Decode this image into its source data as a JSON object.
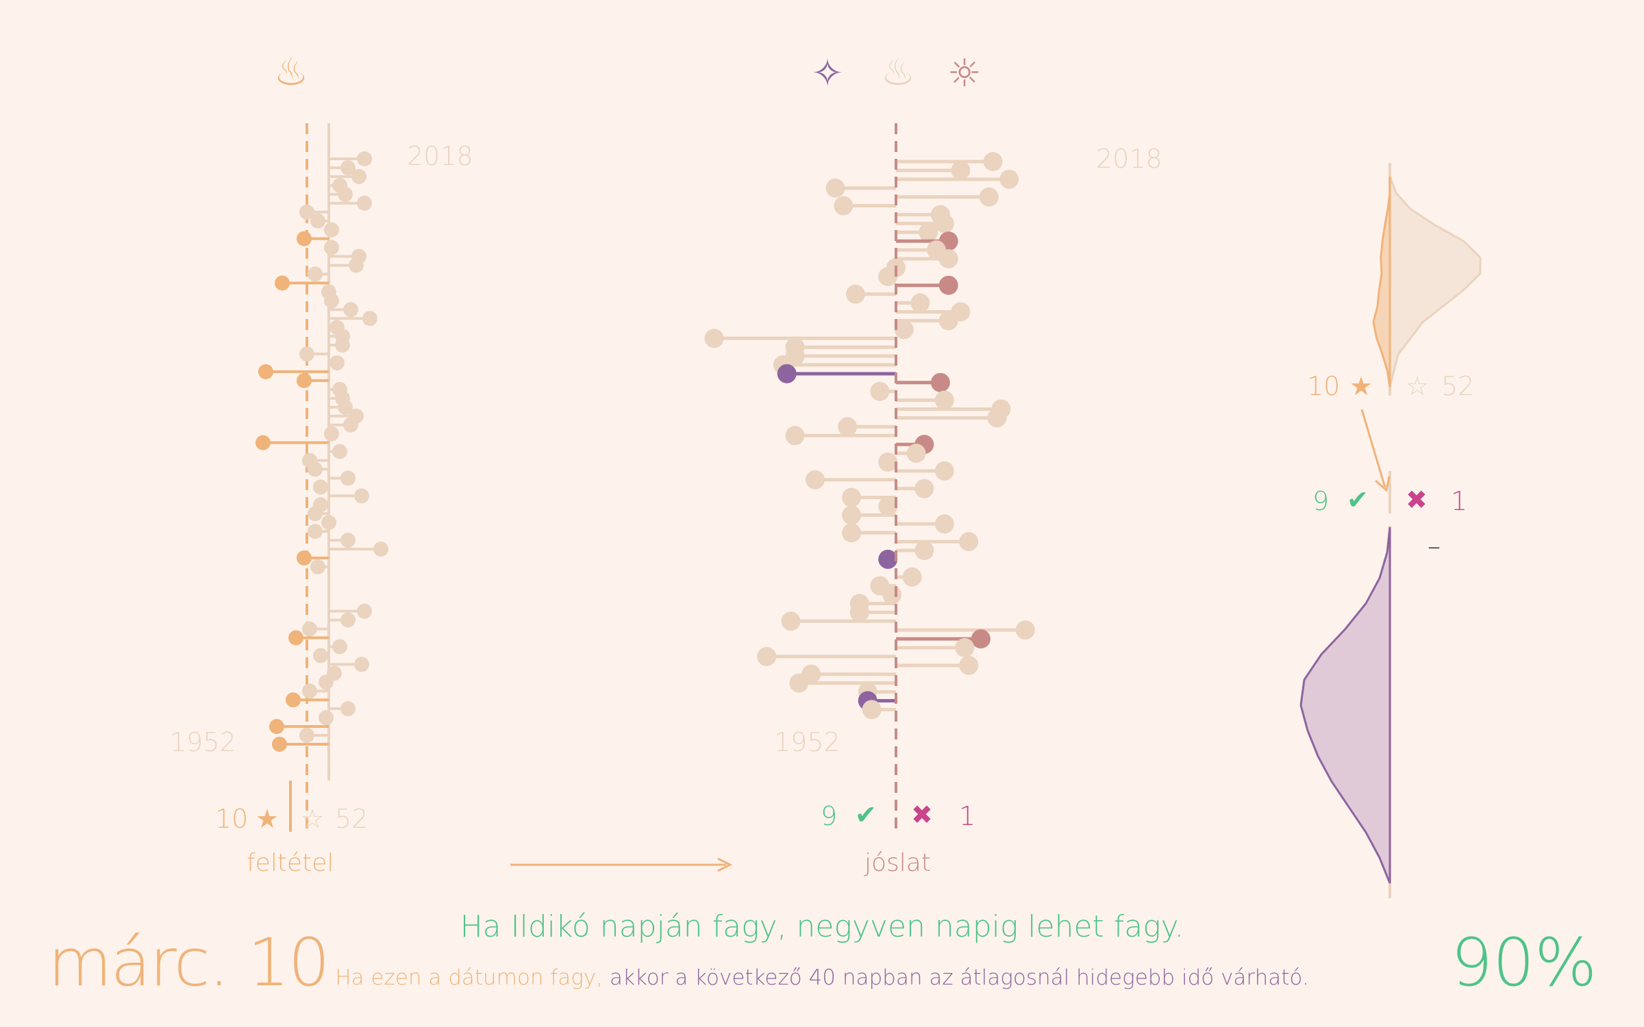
{
  "colors": {
    "background": "#fdf3ec",
    "condition": "#f0b37a",
    "neutral": "#ead3bf",
    "hit": "#8e64a0",
    "threshold": "#c88a86",
    "forecast_miss": "#c88a86",
    "correct": "#4fc389",
    "wrong": "#c9448c"
  },
  "icons": {
    "left": "hot-spring-icon",
    "middle": [
      "sparkles-icon",
      "hot-spring-icon",
      "sun-icon"
    ]
  },
  "chart_data": {
    "type": "lollipop",
    "years": {
      "start": 1952,
      "end": 2018
    },
    "condition_panel": {
      "label": "feltétel",
      "year_top": "2018",
      "year_bottom": "1952",
      "threshold_offset": -0.8,
      "frost_count": "10",
      "nofrost_count": "52",
      "star_filled": "★",
      "star_empty": "☆",
      "values": [
        1.3,
        0.7,
        1.1,
        0.4,
        0.6,
        1.3,
        -0.8,
        -0.4,
        0.1,
        -0.9,
        0.1,
        1.1,
        1.0,
        -0.5,
        -1.7,
        0.0,
        0.1,
        0.8,
        1.5,
        0.3,
        0.5,
        0.5,
        -0.8,
        0.3,
        -2.3,
        -0.9,
        0.4,
        0.5,
        0.6,
        1.0,
        0.8,
        0.1,
        -2.4,
        0.4,
        -0.7,
        -0.5,
        0.7,
        -0.3,
        1.2,
        -0.3,
        -0.5,
        0.0,
        -0.5,
        0.7,
        1.9,
        -0.9,
        -0.4,
        null,
        null,
        null,
        null,
        1.3,
        0.7,
        -0.7,
        -1.2,
        0.4,
        -0.3,
        1.2,
        0.2,
        -0.1,
        -0.7,
        -1.3,
        0.7,
        -0.1,
        -1.9,
        -0.8,
        -1.8
      ]
    },
    "forecast_panel": {
      "label": "jóslat",
      "year_top": "2018",
      "year_bottom": "1952",
      "correct_count": "9",
      "wrong_count": "1",
      "check": "✔",
      "cross": "✖",
      "values": [
        2.4,
        1.6,
        2.8,
        -1.5,
        2.3,
        -1.3,
        1.1,
        1.2,
        0.8,
        1.3,
        1.0,
        1.3,
        0.0,
        -0.2,
        1.3,
        -1.0,
        0.6,
        1.6,
        1.3,
        0.2,
        -4.5,
        -2.5,
        -2.5,
        -2.8,
        -2.7,
        1.1,
        -0.4,
        1.2,
        2.6,
        2.5,
        -1.2,
        -2.5,
        0.7,
        0.5,
        -0.2,
        1.2,
        -2.0,
        0.7,
        -1.1,
        -0.2,
        -1.1,
        1.2,
        -1.1,
        1.8,
        0.7,
        -0.2,
        null,
        0.4,
        -0.4,
        -0.1,
        -0.9,
        -0.9,
        -2.6,
        3.2,
        2.1,
        1.7,
        -3.2,
        1.8,
        -2.1,
        -2.4,
        -0.7,
        -0.7,
        -0.6,
        null,
        null,
        null,
        null
      ]
    },
    "distribution_panel": {
      "frost_count": "10",
      "nofrost_count": "52",
      "correct_count": "9",
      "wrong_count": "1",
      "star_filled": "★",
      "star_empty": "☆",
      "check": "✔",
      "cross": "✖",
      "dash": "–",
      "top_density_nofrost": [
        0.0,
        0.15,
        0.5,
        1.1,
        1.8,
        2.2,
        2.2,
        1.8,
        1.3,
        0.8,
        0.5,
        0.2,
        0.1,
        0.0
      ],
      "top_density_frost": [
        0.0,
        0.0,
        0.05,
        0.12,
        0.18,
        0.22,
        0.2,
        0.26,
        0.3,
        0.4,
        0.32,
        0.18,
        0.06,
        0.0
      ],
      "bottom_density": [
        0.0,
        0.08,
        0.3,
        0.7,
        1.3,
        2.0,
        2.5,
        2.6,
        2.4,
        2.1,
        1.7,
        1.2,
        0.7,
        0.3,
        0.0
      ]
    }
  },
  "text": {
    "date": "márc. 10",
    "percent": "90%",
    "headline": "Ha Ildikó napján fagy, negyven napig lehet fagy.",
    "sub_condition": "Ha ezen a dátumon fagy,",
    "sub_forecast": "akkor a következő 40 napban az átlagosnál hidegebb idő várható."
  }
}
